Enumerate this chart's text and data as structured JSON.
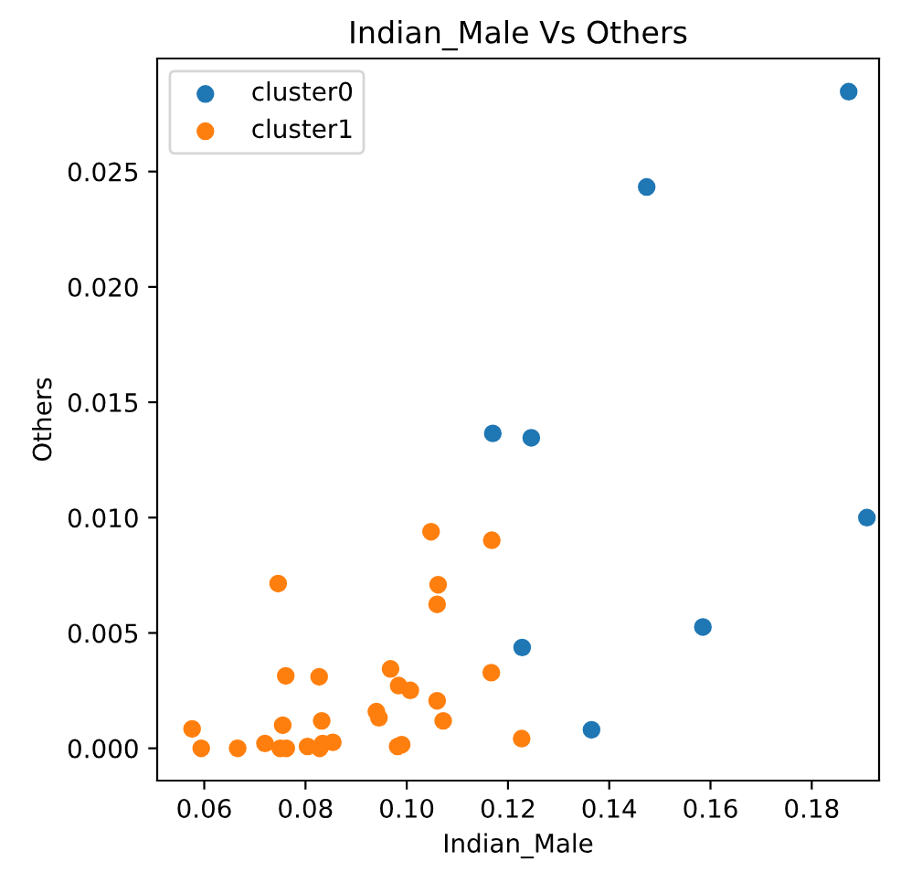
{
  "chart_data": {
    "type": "scatter",
    "title": "Indian_Male Vs Others",
    "xlabel": "Indian_Male",
    "ylabel": "Others",
    "xlim": [
      0.0507,
      0.1933
    ],
    "ylim": [
      -0.0014,
      0.0299
    ],
    "xticks": [
      {
        "value": 0.06,
        "label": "0.06"
      },
      {
        "value": 0.08,
        "label": "0.08"
      },
      {
        "value": 0.1,
        "label": "0.10"
      },
      {
        "value": 0.12,
        "label": "0.12"
      },
      {
        "value": 0.14,
        "label": "0.14"
      },
      {
        "value": 0.16,
        "label": "0.16"
      },
      {
        "value": 0.18,
        "label": "0.18"
      }
    ],
    "yticks": [
      {
        "value": 0,
        "label": "0.000"
      },
      {
        "value": 0.005,
        "label": "0.005"
      },
      {
        "value": 0.01,
        "label": "0.010"
      },
      {
        "value": 0.015,
        "label": "0.015"
      },
      {
        "value": 0.02,
        "label": "0.020"
      },
      {
        "value": 0.025,
        "label": "0.025"
      }
    ],
    "legend": "top left",
    "marker": "circle",
    "grid": false,
    "series": [
      {
        "name": "cluster0",
        "color": "#1f77b4",
        "x": [
          0.1873,
          0.1474,
          0.117,
          0.1246,
          0.1909,
          0.1228,
          0.1585,
          0.1365
        ],
        "values": [
          0.02846,
          0.02433,
          0.01365,
          0.01346,
          0.01,
          0.00437,
          0.00526,
          0.0008
        ]
      },
      {
        "name": "cluster1",
        "color": "#ff7f0e",
        "x": [
          0.1048,
          0.1168,
          0.0746,
          0.1062,
          0.106,
          0.0761,
          0.0827,
          0.0968,
          0.0984,
          0.1007,
          0.106,
          0.1167,
          0.1072,
          0.0832,
          0.0755,
          0.0576,
          0.0594,
          0.0666,
          0.072,
          0.075,
          0.0762,
          0.0804,
          0.0828,
          0.0834,
          0.0854,
          0.094,
          0.0945,
          0.0982,
          0.099,
          0.1227
        ],
        "values": [
          0.00939,
          0.00902,
          0.00714,
          0.00709,
          0.00624,
          0.00314,
          0.0031,
          0.00344,
          0.00272,
          0.00251,
          0.00206,
          0.00328,
          0.00119,
          0.00119,
          0.001,
          0.00084,
          0.0,
          0.0,
          0.00021,
          0.0,
          0.0,
          8e-05,
          0.0,
          0.00021,
          0.00026,
          0.00159,
          0.00132,
          8e-05,
          0.00016,
          0.00042
        ]
      }
    ]
  }
}
